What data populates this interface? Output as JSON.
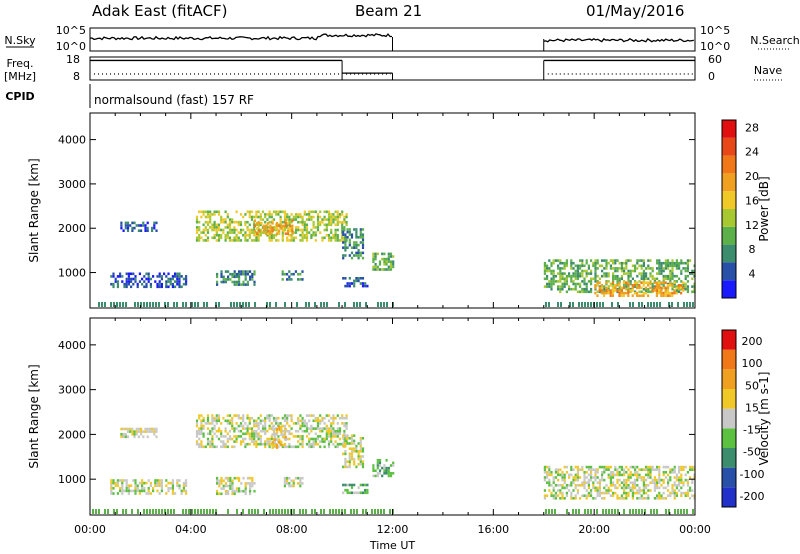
{
  "header": {
    "station": "Adak East (fitACF)",
    "beam": "Beam 21",
    "date": "01/May/2016"
  },
  "chart_data": [
    {
      "type": "line",
      "name_left": "N.Sky",
      "name_right": "N.Search",
      "left_ticks": [
        "10^5",
        "10^0"
      ],
      "right_ticks": [
        "10^5",
        "10^0"
      ],
      "x_range_hours": [
        0,
        24
      ],
      "segments": [
        {
          "x": [
            0,
            12
          ],
          "y_level": 0.45
        },
        {
          "x": [
            18,
            24
          ],
          "y_level": 0.3
        }
      ]
    },
    {
      "type": "line",
      "name_left": "Freq.",
      "unit_left": "[MHz]",
      "name_right": "Nave",
      "left_ticks": [
        "18",
        "8"
      ],
      "right_ticks": [
        "60",
        "0"
      ],
      "segments": [
        {
          "x": [
            0,
            10
          ],
          "y": 16.5
        },
        {
          "x": [
            10,
            12
          ],
          "y": 11
        },
        {
          "x": [
            18,
            24
          ],
          "y": 16.5
        }
      ]
    },
    {
      "type": "table",
      "label": "CPID",
      "text": "normalsound (fast) 157 RF"
    },
    {
      "type": "heatmap",
      "ylabel": "Slant Range [km]",
      "yticks": [
        1000,
        2000,
        3000,
        4000
      ],
      "ylim": [
        200,
        4600
      ],
      "xlim": [
        0,
        24
      ],
      "colorbar_label": "Power [dB]",
      "colorbar_ticks": [
        "4",
        "8",
        "12",
        "16",
        "20",
        "24",
        "28"
      ],
      "colorbar_colors": [
        "#1a1aff",
        "#2850a8",
        "#3c8c6e",
        "#5cb04a",
        "#a8c832",
        "#f0c828",
        "#f0a020",
        "#f07818",
        "#e84818",
        "#e01010"
      ],
      "blobs": [
        {
          "x": [
            1.2,
            2.6
          ],
          "range": [
            1950,
            2150
          ],
          "level": 1
        },
        {
          "x": [
            4.2,
            10.2
          ],
          "range": [
            1700,
            2400
          ],
          "level": 4
        },
        {
          "x": [
            6.5,
            8.0
          ],
          "range": [
            1900,
            2200
          ],
          "level": 6
        },
        {
          "x": [
            10.0,
            10.8
          ],
          "range": [
            1300,
            2000
          ],
          "level": 2
        },
        {
          "x": [
            0.8,
            3.8
          ],
          "range": [
            700,
            1000
          ],
          "level": 1
        },
        {
          "x": [
            5.0,
            6.5
          ],
          "range": [
            700,
            1050
          ],
          "level": 2
        },
        {
          "x": [
            7.6,
            8.4
          ],
          "range": [
            850,
            1050
          ],
          "level": 2
        },
        {
          "x": [
            10.0,
            11.0
          ],
          "range": [
            700,
            900
          ],
          "level": 1
        },
        {
          "x": [
            11.2,
            12.0
          ],
          "range": [
            1050,
            1450
          ],
          "level": 3
        },
        {
          "x": [
            18.0,
            24.0
          ],
          "range": [
            550,
            1300
          ],
          "level": 3
        },
        {
          "x": [
            20.0,
            23.5
          ],
          "range": [
            500,
            800
          ],
          "level": 6
        }
      ]
    },
    {
      "type": "heatmap",
      "ylabel": "Slant Range [km]",
      "xlabel": "Time UT",
      "xticks": [
        "00:00",
        "04:00",
        "08:00",
        "12:00",
        "16:00",
        "20:00",
        "00:00"
      ],
      "yticks": [
        1000,
        2000,
        3000,
        4000
      ],
      "ylim": [
        200,
        4600
      ],
      "xlim": [
        0,
        24
      ],
      "colorbar_label": "Velocity [m s-1]",
      "colorbar_ticks": [
        "200",
        "100",
        "50",
        "15",
        "-15",
        "-50",
        "-100",
        "-200"
      ],
      "colorbar_colors": [
        "#2030c8",
        "#2850a8",
        "#3c8c6e",
        "#5cc040",
        "#c8c8c8",
        "#f0c828",
        "#f0a020",
        "#f07818",
        "#e01010"
      ],
      "blobs": [
        {
          "x": [
            1.2,
            2.6
          ],
          "range": [
            1950,
            2150
          ],
          "level": 4
        },
        {
          "x": [
            4.2,
            10.2
          ],
          "range": [
            1700,
            2450
          ],
          "level": 4
        },
        {
          "x": [
            7.2,
            7.8
          ],
          "range": [
            1700,
            2200
          ],
          "level": 5
        },
        {
          "x": [
            10.0,
            10.8
          ],
          "range": [
            1300,
            2000
          ],
          "level": 4
        },
        {
          "x": [
            0.8,
            3.8
          ],
          "range": [
            700,
            1000
          ],
          "level": 4
        },
        {
          "x": [
            5.0,
            6.5
          ],
          "range": [
            700,
            1050
          ],
          "level": 4
        },
        {
          "x": [
            7.6,
            8.4
          ],
          "range": [
            850,
            1050
          ],
          "level": 4
        },
        {
          "x": [
            10.0,
            11.0
          ],
          "range": [
            700,
            900
          ],
          "level": 3
        },
        {
          "x": [
            11.2,
            12.0
          ],
          "range": [
            1050,
            1450
          ],
          "level": 3
        },
        {
          "x": [
            18.0,
            24.0
          ],
          "range": [
            550,
            1300
          ],
          "level": 4
        }
      ]
    }
  ]
}
